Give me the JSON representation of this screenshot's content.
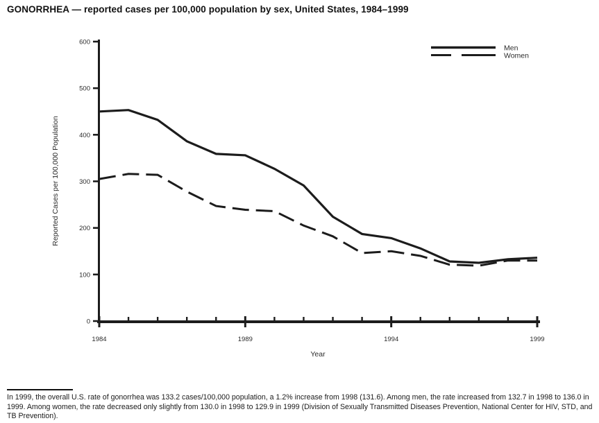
{
  "title": "GONORRHEA — reported cases per 100,000 population by sex, United States, 1984–1999",
  "chart_data": {
    "type": "line",
    "title": "GONORRHEA — reported cases per 100,000 population by sex, United States, 1984–1999",
    "xlabel": "Year",
    "ylabel": "Reported Cases per 100,000 Population",
    "x": [
      1984,
      1985,
      1986,
      1987,
      1988,
      1989,
      1990,
      1991,
      1992,
      1993,
      1994,
      1995,
      1996,
      1997,
      1998,
      1999
    ],
    "series": [
      {
        "name": "Men",
        "style": "solid",
        "values": [
          450,
          453,
          432,
          386,
          359,
          356,
          327,
          291,
          224,
          187,
          178,
          156,
          128,
          125,
          132.7,
          136.0
        ]
      },
      {
        "name": "Women",
        "style": "dashed",
        "values": [
          305,
          316,
          314,
          278,
          247,
          239,
          236,
          205,
          182,
          146,
          150,
          140,
          121,
          119,
          130.0,
          129.9
        ]
      }
    ],
    "ylim": [
      0,
      600
    ],
    "y_ticks": [
      0,
      100,
      200,
      300,
      400,
      500,
      600
    ],
    "x_tick_labels": [
      "1984",
      "1989",
      "1994",
      "1999"
    ],
    "legend_position": "top-right",
    "grid": false
  },
  "colors": {
    "line": "#1c1c1c",
    "axis": "#1c1c1c",
    "tick_label": "#2b2b2b",
    "background": "#ffffff"
  },
  "footer": {
    "text": "In 1999, the overall U.S. rate of gonorrhea was 133.2 cases/100,000 population, a 1.2% increase from 1998 (131.6). Among men, the rate increased from 132.7 in 1998 to 136.0 in 1999. Among women, the rate decreased only slightly from 130.0 in 1998 to 129.9 in 1999 (Division of Sexually Transmitted Diseases Prevention, National Center for HIV, STD, and TB Prevention)."
  }
}
